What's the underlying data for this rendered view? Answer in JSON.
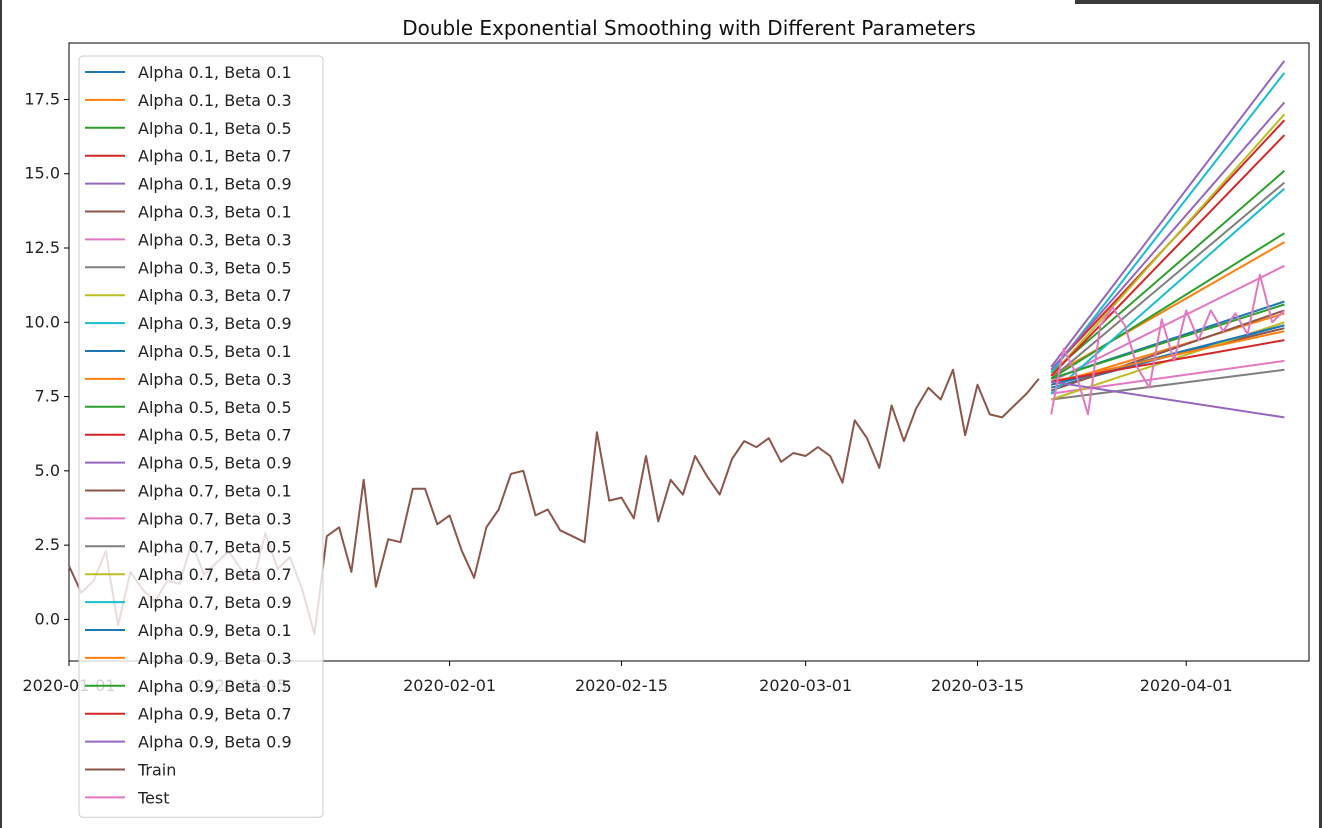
{
  "chart_data": {
    "type": "line",
    "title": "Double Exponential Smoothing with Different Parameters",
    "xlabel": "",
    "ylabel": "",
    "x_axis": {
      "type": "date",
      "range": [
        "2020-01-01",
        "2020-04-11"
      ],
      "tick_labels": [
        "2020-01-01",
        "2020-01-15",
        "2020-02-01",
        "2020-02-15",
        "2020-03-01",
        "2020-03-15",
        "2020-04-01"
      ]
    },
    "y_axis": {
      "range": [
        -1.4,
        19.4
      ],
      "ticks": [
        0,
        2.5,
        5,
        7.5,
        10,
        12.5,
        15,
        17.5
      ],
      "tick_labels": [
        "0.0",
        "2.5",
        "5.0",
        "7.5",
        "10.0",
        "12.5",
        "15.0",
        "17.5"
      ]
    },
    "grid": false,
    "legend_position": "top-left",
    "series": [
      {
        "name": "Alpha 0.1, Beta 0.1",
        "color": "#1f77b4",
        "x": [
          "2020-03-21",
          "2020-04-09"
        ],
        "y": [
          8.1,
          10.7
        ]
      },
      {
        "name": "Alpha 0.1, Beta 0.3",
        "color": "#ff7f0e",
        "x": [
          "2020-03-21",
          "2020-04-09"
        ],
        "y": [
          8.2,
          12.7
        ]
      },
      {
        "name": "Alpha 0.1, Beta 0.5",
        "color": "#2ca02c",
        "x": [
          "2020-03-21",
          "2020-04-09"
        ],
        "y": [
          8.3,
          15.1
        ]
      },
      {
        "name": "Alpha 0.1, Beta 0.7",
        "color": "#d62728",
        "x": [
          "2020-03-21",
          "2020-04-09"
        ],
        "y": [
          8.4,
          16.8
        ]
      },
      {
        "name": "Alpha 0.1, Beta 0.9",
        "color": "#9467bd",
        "x": [
          "2020-03-21",
          "2020-04-09"
        ],
        "y": [
          8.5,
          18.8
        ]
      },
      {
        "name": "Alpha 0.3, Beta 0.1",
        "color": "#8c564b",
        "x": [
          "2020-03-21",
          "2020-04-09"
        ],
        "y": [
          7.9,
          9.8
        ]
      },
      {
        "name": "Alpha 0.3, Beta 0.3",
        "color": "#e377c2",
        "x": [
          "2020-03-21",
          "2020-04-09"
        ],
        "y": [
          8.0,
          11.9
        ]
      },
      {
        "name": "Alpha 0.3, Beta 0.5",
        "color": "#7f7f7f",
        "x": [
          "2020-03-21",
          "2020-04-09"
        ],
        "y": [
          8.1,
          14.7
        ]
      },
      {
        "name": "Alpha 0.3, Beta 0.7",
        "color": "#bcbd22",
        "x": [
          "2020-03-21",
          "2020-04-09"
        ],
        "y": [
          8.2,
          17.0
        ]
      },
      {
        "name": "Alpha 0.3, Beta 0.9",
        "color": "#17becf",
        "x": [
          "2020-03-21",
          "2020-04-09"
        ],
        "y": [
          8.3,
          18.4
        ]
      },
      {
        "name": "Alpha 0.5, Beta 0.1",
        "color": "#1f77b4",
        "x": [
          "2020-03-21",
          "2020-04-09"
        ],
        "y": [
          7.8,
          9.9
        ]
      },
      {
        "name": "Alpha 0.5, Beta 0.3",
        "color": "#ff7f0e",
        "x": [
          "2020-03-21",
          "2020-04-09"
        ],
        "y": [
          7.9,
          10.3
        ]
      },
      {
        "name": "Alpha 0.5, Beta 0.5",
        "color": "#2ca02c",
        "x": [
          "2020-03-21",
          "2020-04-09"
        ],
        "y": [
          8.1,
          13.0
        ]
      },
      {
        "name": "Alpha 0.5, Beta 0.7",
        "color": "#d62728",
        "x": [
          "2020-03-21",
          "2020-04-09"
        ],
        "y": [
          8.2,
          16.3
        ]
      },
      {
        "name": "Alpha 0.5, Beta 0.9",
        "color": "#9467bd",
        "x": [
          "2020-03-21",
          "2020-04-09"
        ],
        "y": [
          8.4,
          17.4
        ]
      },
      {
        "name": "Alpha 0.7, Beta 0.1",
        "color": "#8c564b",
        "x": [
          "2020-03-21",
          "2020-04-09"
        ],
        "y": [
          7.7,
          10.4
        ]
      },
      {
        "name": "Alpha 0.7, Beta 0.3",
        "color": "#e377c2",
        "x": [
          "2020-03-21",
          "2020-04-09"
        ],
        "y": [
          7.6,
          8.7
        ]
      },
      {
        "name": "Alpha 0.7, Beta 0.5",
        "color": "#7f7f7f",
        "x": [
          "2020-03-21",
          "2020-04-09"
        ],
        "y": [
          7.4,
          8.4
        ]
      },
      {
        "name": "Alpha 0.7, Beta 0.7",
        "color": "#bcbd22",
        "x": [
          "2020-03-21",
          "2020-04-09"
        ],
        "y": [
          7.4,
          10.0
        ]
      },
      {
        "name": "Alpha 0.7, Beta 0.9",
        "color": "#17becf",
        "x": [
          "2020-03-21",
          "2020-04-09"
        ],
        "y": [
          7.6,
          14.5
        ]
      },
      {
        "name": "Alpha 0.9, Beta 0.1",
        "color": "#1f77b4",
        "x": [
          "2020-03-21",
          "2020-04-09"
        ],
        "y": [
          7.9,
          9.9
        ]
      },
      {
        "name": "Alpha 0.9, Beta 0.3",
        "color": "#ff7f0e",
        "x": [
          "2020-03-21",
          "2020-04-09"
        ],
        "y": [
          8.0,
          9.7
        ]
      },
      {
        "name": "Alpha 0.9, Beta 0.5",
        "color": "#2ca02c",
        "x": [
          "2020-03-21",
          "2020-04-09"
        ],
        "y": [
          8.1,
          10.6
        ]
      },
      {
        "name": "Alpha 0.9, Beta 0.7",
        "color": "#d62728",
        "x": [
          "2020-03-21",
          "2020-04-09"
        ],
        "y": [
          8.0,
          9.4
        ]
      },
      {
        "name": "Alpha 0.9, Beta 0.9",
        "color": "#9467bd",
        "x": [
          "2020-03-21",
          "2020-04-09"
        ],
        "y": [
          8.0,
          6.8
        ]
      },
      {
        "name": "Train",
        "color": "#8c564b",
        "x": [
          "2020-01-01",
          "2020-01-02",
          "2020-01-03",
          "2020-01-04",
          "2020-01-05",
          "2020-01-06",
          "2020-01-07",
          "2020-01-08",
          "2020-01-09",
          "2020-01-10",
          "2020-01-11",
          "2020-01-12",
          "2020-01-13",
          "2020-01-14",
          "2020-01-15",
          "2020-01-16",
          "2020-01-17",
          "2020-01-18",
          "2020-01-19",
          "2020-01-20",
          "2020-01-21",
          "2020-01-22",
          "2020-01-23",
          "2020-01-24",
          "2020-01-25",
          "2020-01-26",
          "2020-01-27",
          "2020-01-28",
          "2020-01-29",
          "2020-01-30",
          "2020-01-31",
          "2020-02-01",
          "2020-02-02",
          "2020-02-03",
          "2020-02-04",
          "2020-02-05",
          "2020-02-06",
          "2020-02-07",
          "2020-02-08",
          "2020-02-09",
          "2020-02-10",
          "2020-02-11",
          "2020-02-12",
          "2020-02-13",
          "2020-02-14",
          "2020-02-15",
          "2020-02-16",
          "2020-02-17",
          "2020-02-18",
          "2020-02-19",
          "2020-02-20",
          "2020-02-21",
          "2020-02-22",
          "2020-02-23",
          "2020-02-24",
          "2020-02-25",
          "2020-02-26",
          "2020-02-27",
          "2020-02-28",
          "2020-02-29",
          "2020-03-01",
          "2020-03-02",
          "2020-03-03",
          "2020-03-04",
          "2020-03-05",
          "2020-03-06",
          "2020-03-07",
          "2020-03-08",
          "2020-03-09",
          "2020-03-10",
          "2020-03-11",
          "2020-03-12",
          "2020-03-13",
          "2020-03-14",
          "2020-03-15",
          "2020-03-16",
          "2020-03-17",
          "2020-03-18",
          "2020-03-19",
          "2020-03-20"
        ],
        "y": [
          1.8,
          0.9,
          1.3,
          2.3,
          -0.2,
          1.6,
          1.0,
          0.6,
          1.3,
          1.2,
          2.6,
          1.5,
          1.9,
          2.3,
          1.7,
          1.3,
          2.9,
          1.7,
          2.1,
          1.0,
          -0.5,
          2.8,
          3.1,
          1.6,
          4.7,
          1.1,
          2.7,
          2.6,
          4.4,
          4.4,
          3.2,
          3.5,
          2.3,
          1.4,
          3.1,
          3.7,
          4.9,
          5.0,
          3.5,
          3.7,
          3.0,
          2.8,
          2.6,
          6.3,
          4.0,
          4.1,
          3.4,
          5.5,
          3.3,
          4.7,
          4.2,
          5.5,
          4.8,
          4.2,
          5.4,
          6.0,
          5.8,
          6.1,
          5.3,
          5.6,
          5.5,
          5.8,
          5.5,
          4.6,
          6.7,
          6.1,
          5.1,
          7.2,
          6.0,
          7.1,
          7.8,
          7.4,
          8.4,
          6.2,
          7.9,
          6.9,
          6.8,
          7.2,
          7.6,
          8.1
        ]
      },
      {
        "name": "Test",
        "color": "#e377c2",
        "x": [
          "2020-03-21",
          "2020-03-22",
          "2020-03-23",
          "2020-03-24",
          "2020-03-25",
          "2020-03-26",
          "2020-03-27",
          "2020-03-28",
          "2020-03-29",
          "2020-03-30",
          "2020-03-31",
          "2020-04-01",
          "2020-04-02",
          "2020-04-03",
          "2020-04-04",
          "2020-04-05",
          "2020-04-06",
          "2020-04-07",
          "2020-04-08",
          "2020-04-09"
        ],
        "y": [
          6.9,
          9.1,
          8.3,
          6.9,
          9.9,
          10.5,
          9.9,
          8.5,
          7.8,
          10.1,
          8.7,
          10.4,
          9.4,
          10.4,
          9.7,
          10.3,
          9.6,
          11.6,
          10.0,
          10.4
        ]
      }
    ]
  }
}
